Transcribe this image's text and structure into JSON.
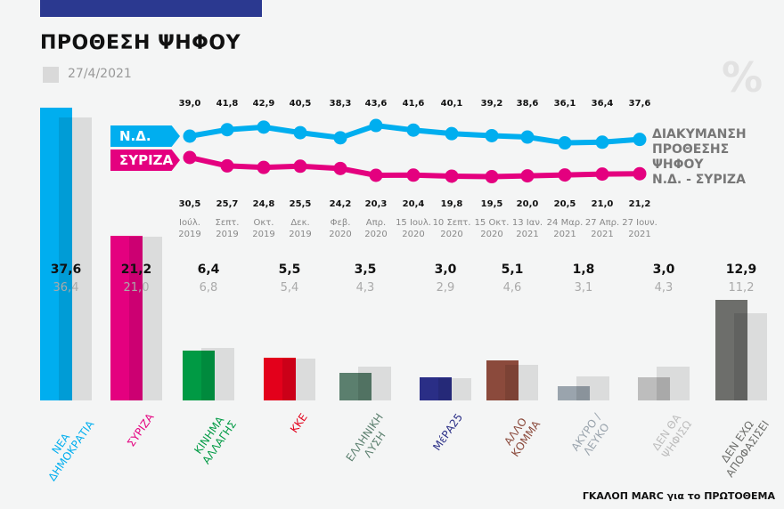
{
  "header": {
    "title": "ΠΡΟΘΕΣΗ ΨΗΦΟΥ",
    "legend_previous": "27/4/2021",
    "percent_symbol": "%",
    "source": "ΓΚΑΛΟΠ MARC για το ΠΡΩΤΟΘΕΜΑ"
  },
  "colors": {
    "topbar": "#2b3990",
    "nd": "#00aeef",
    "syriza": "#e4007f"
  },
  "chart_data": [
    {
      "type": "line",
      "title": "ΔΙΑΚΥΜΑΝΣΗ ΠΡΟΘΕΣΗΣ ΨΗΦΟΥ Ν.Δ. - ΣΥΡΙΖΑ",
      "title_lines": [
        "ΔΙΑΚΥΜΑΝΣΗ",
        "ΠΡΟΘΕΣΗΣ",
        "ΨΗΦΟΥ",
        "Ν.Δ. - ΣΥΡΙΖΑ"
      ],
      "categories": [
        [
          "Ιούλ.",
          "2019"
        ],
        [
          "Σεπτ.",
          "2019"
        ],
        [
          "Οκτ.",
          "2019"
        ],
        [
          "Δεκ.",
          "2019"
        ],
        [
          "Φεβ.",
          "2020"
        ],
        [
          "Απρ.",
          "2020"
        ],
        [
          "15 Ιουλ.",
          "2020"
        ],
        [
          "10 Σεπτ.",
          "2020"
        ],
        [
          "15 Οκτ.",
          "2020"
        ],
        [
          "13 Ιαν.",
          "2021"
        ],
        [
          "24 Μαρ.",
          "2021"
        ],
        [
          "27 Απρ.",
          "2021"
        ],
        [
          "27 Ιουν.",
          "2021"
        ]
      ],
      "series": [
        {
          "name": "Ν.Δ.",
          "color": "#00aeef",
          "values": [
            39.0,
            41.8,
            42.9,
            40.5,
            38.3,
            43.6,
            41.6,
            40.1,
            39.2,
            38.6,
            36.1,
            36.4,
            37.6
          ],
          "labels": [
            "39,0",
            "41,8",
            "42,9",
            "40,5",
            "38,3",
            "43,6",
            "41,6",
            "40,1",
            "39,2",
            "38,6",
            "36,1",
            "36,4",
            "37,6"
          ]
        },
        {
          "name": "ΣΥΡΙΖΑ",
          "color": "#e4007f",
          "values": [
            30.5,
            25.7,
            24.8,
            25.5,
            24.2,
            20.3,
            20.4,
            19.8,
            19.5,
            20.0,
            20.5,
            21.0,
            21.2
          ],
          "labels": [
            "30,5",
            "25,7",
            "24,8",
            "25,5",
            "24,2",
            "20,3",
            "20,4",
            "19,8",
            "19,5",
            "20,0",
            "20,5",
            "21,0",
            "21,2"
          ]
        }
      ]
    },
    {
      "type": "bar",
      "series_names": [
        "current",
        "27/4/2021"
      ],
      "parties": [
        {
          "name": "ΝΕΑ\nΔΗΜΟΚΡΑΤΙΑ",
          "color": "#00aeef",
          "value": 37.6,
          "prev": 36.4,
          "label": "37,6",
          "prev_label": "36,4"
        },
        {
          "name": "ΣΥΡΙΖΑ",
          "color": "#e4007f",
          "value": 21.2,
          "prev": 21.0,
          "label": "21,2",
          "prev_label": "21,0"
        },
        {
          "name": "ΚΙΝΗΜΑ\nΑΛΛΑΓΗΣ",
          "color": "#009a44",
          "value": 6.4,
          "prev": 6.8,
          "label": "6,4",
          "prev_label": "6,8"
        },
        {
          "name": "ΚΚΕ",
          "color": "#e3001b",
          "value": 5.5,
          "prev": 5.4,
          "label": "5,5",
          "prev_label": "5,4"
        },
        {
          "name": "ΕΛΛΗΝΙΚΗ\nΛΥΣΗ",
          "color": "#5b7f6e",
          "value": 3.5,
          "prev": 4.3,
          "label": "3,5",
          "prev_label": "4,3"
        },
        {
          "name": "ΜέΡΑ25",
          "color": "#2a2e86",
          "value": 3.0,
          "prev": 2.9,
          "label": "3,0",
          "prev_label": "2,9"
        },
        {
          "name": "ΑΛΛΟ\nΚΟΜΜΑ",
          "color": "#8b4a3c",
          "value": 5.1,
          "prev": 4.6,
          "label": "5,1",
          "prev_label": "4,6"
        },
        {
          "name": "ΑΚΥΡΟ /\nΛΕΥΚΟ",
          "color": "#9aa4ad",
          "value": 1.8,
          "prev": 3.1,
          "label": "1,8",
          "prev_label": "3,1"
        },
        {
          "name": "ΔΕΝ ΘΑ\nΨΗΦΙΣΩ",
          "color": "#bdbdbd",
          "value": 3.0,
          "prev": 4.3,
          "label": "3,0",
          "prev_label": "4,3"
        },
        {
          "name": "ΔΕΝ ΕΧΩ\nΑΠΟΦΑΣΙΣΕΙ",
          "color": "#6d6e6b",
          "value": 12.9,
          "prev": 11.2,
          "label": "12,9",
          "prev_label": "11,2"
        }
      ]
    }
  ]
}
